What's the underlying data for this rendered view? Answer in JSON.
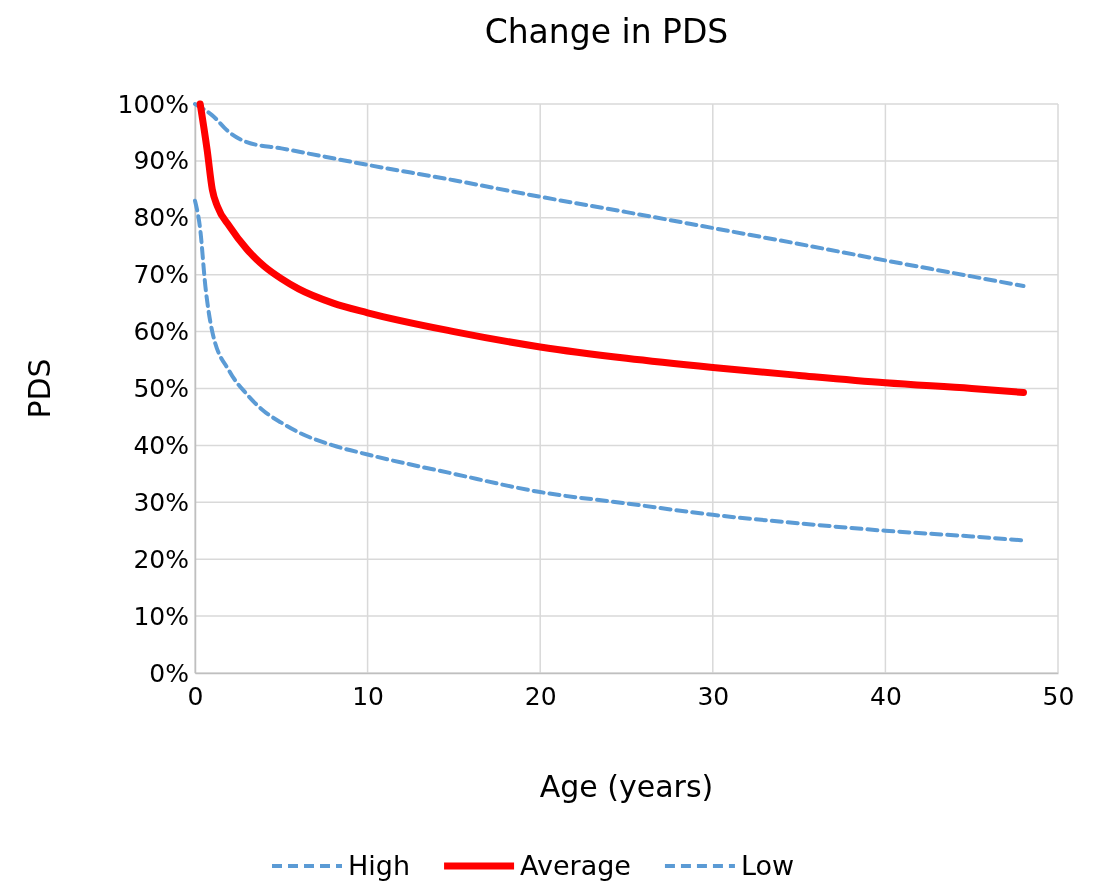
{
  "chart_data": {
    "type": "line",
    "title": "Change in PDS",
    "xlabel": "Age (years)",
    "ylabel": "PDS",
    "xlim": [
      0,
      50
    ],
    "xticks": [
      0,
      10,
      20,
      30,
      40,
      50
    ],
    "ylim": [
      0,
      100
    ],
    "yticks": [
      {
        "value": 0,
        "label": "0%"
      },
      {
        "value": 10,
        "label": "10%"
      },
      {
        "value": 20,
        "label": "20%"
      },
      {
        "value": 30,
        "label": "30%"
      },
      {
        "value": 40,
        "label": "40%"
      },
      {
        "value": 50,
        "label": "50%"
      },
      {
        "value": 60,
        "label": "60%"
      },
      {
        "value": 70,
        "label": "70%"
      },
      {
        "value": 80,
        "label": "80%"
      },
      {
        "value": 90,
        "label": "90%"
      },
      {
        "value": 100,
        "label": "100%"
      }
    ],
    "grid": true,
    "legend": "bottom",
    "marker": "none",
    "series": [
      {
        "name": "High",
        "color": "#5b9bd5",
        "line_style": "dashed",
        "x": [
          0,
          1,
          2,
          3,
          5,
          10,
          15,
          20,
          25,
          30,
          35,
          40,
          45,
          48
        ],
        "values": [
          100,
          98,
          95,
          93.3,
          92.2,
          89.3,
          86.6,
          83.7,
          81,
          78.2,
          75.4,
          72.5,
          69.7,
          68
        ]
      },
      {
        "name": "Average",
        "color": "#ff0000",
        "line_style": "solid",
        "x": [
          0.3,
          0.7,
          1,
          1.3,
          2,
          3,
          4,
          5,
          6,
          8,
          10,
          15,
          20,
          25,
          30,
          35,
          40,
          45,
          48
        ],
        "values": [
          100,
          92,
          85,
          82,
          78.5,
          74.5,
          71.5,
          69.3,
          67.5,
          65,
          63.3,
          60,
          57.3,
          55.3,
          53.7,
          52.3,
          51,
          50,
          49.3
        ]
      },
      {
        "name": "Low",
        "color": "#5b9bd5",
        "line_style": "dashed",
        "x": [
          0,
          0.3,
          0.6,
          1,
          2,
          3,
          4,
          5,
          6,
          8,
          10,
          15,
          20,
          25,
          30,
          35,
          40,
          45,
          48
        ],
        "values": [
          83,
          78,
          68,
          60,
          53,
          49,
          46,
          44,
          42.3,
          40,
          38.4,
          35,
          31.8,
          29.8,
          27.8,
          26.3,
          25,
          24,
          23.3
        ]
      }
    ]
  }
}
